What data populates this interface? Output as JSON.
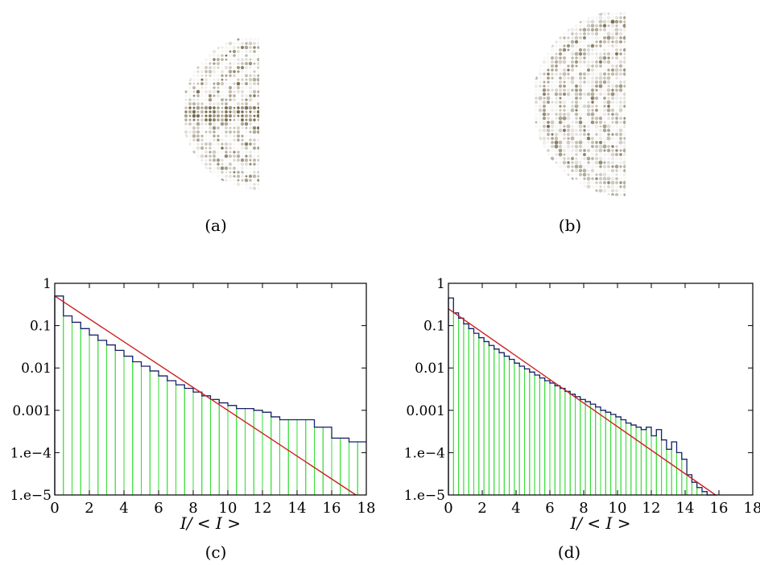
{
  "captions": {
    "a": "(a)",
    "b": "(b)",
    "c": "(c)",
    "d": "(d)"
  },
  "colors": {
    "pattern": "#6b5e3e",
    "bars": "#33dd33",
    "histogram": "#1b1f6b",
    "fit": "#cc2222",
    "axes": "#000000"
  },
  "chart_data": [
    {
      "type": "bar",
      "panel": "c",
      "xlabel": "I/ < I >",
      "ylabel": "",
      "xlim": [
        0,
        18
      ],
      "ylim": [
        1e-05,
        1
      ],
      "yscale": "log",
      "xticks": [
        "0",
        "2",
        "4",
        "6",
        "8",
        "10",
        "12",
        "14",
        "16",
        "18"
      ],
      "yticks": [
        "1",
        "0.1",
        "0.01",
        "0.001",
        "1.e−4",
        "1.e−5"
      ],
      "bar_width": 0.5,
      "bars_x": [
        0,
        0.5,
        1,
        1.5,
        2,
        2.5,
        3,
        3.5,
        4,
        4.5,
        5,
        5.5,
        6,
        6.5,
        7,
        7.5,
        8,
        8.5,
        9,
        9.5,
        10,
        10.5,
        11,
        11.5,
        12,
        12.5,
        13,
        13.5,
        14,
        14.5,
        15,
        15.5,
        16,
        16.5,
        17,
        17.5
      ],
      "histogram_values": [
        0.5,
        0.17,
        0.12,
        0.085,
        0.06,
        0.045,
        0.035,
        0.026,
        0.019,
        0.014,
        0.011,
        0.0085,
        0.0065,
        0.005,
        0.004,
        0.0033,
        0.0027,
        0.0022,
        0.0018,
        0.0015,
        0.0013,
        0.0011,
        0.0011,
        0.001,
        0.0009,
        0.0007,
        0.0006,
        0.0006,
        0.0006,
        0.0006,
        0.0004,
        0.0004,
        0.00022,
        0.00022,
        0.00018,
        0.00018
      ],
      "fit_line": [
        [
          0,
          0.5
        ],
        [
          17.4,
          1e-05
        ]
      ]
    },
    {
      "type": "bar",
      "panel": "d",
      "xlabel": "I/ < I >",
      "ylabel": "",
      "xlim": [
        0,
        18
      ],
      "ylim": [
        1e-05,
        1
      ],
      "yscale": "log",
      "xticks": [
        "0",
        "2",
        "4",
        "6",
        "8",
        "10",
        "12",
        "14",
        "16",
        "18"
      ],
      "yticks": [
        "1",
        "0.1",
        "0.01",
        "0.001",
        "1.e−4",
        "1.e−5"
      ],
      "bar_width": 0.3,
      "bars_x": [
        0,
        0.3,
        0.6,
        0.9,
        1.2,
        1.5,
        1.8,
        2.1,
        2.4,
        2.7,
        3,
        3.3,
        3.6,
        3.9,
        4.2,
        4.5,
        4.8,
        5.1,
        5.4,
        5.7,
        6,
        6.3,
        6.6,
        6.9,
        7.2,
        7.5,
        7.8,
        8.1,
        8.4,
        8.7,
        9,
        9.3,
        9.6,
        9.9,
        10.2,
        10.5,
        10.8,
        11.1,
        11.4,
        11.7,
        12,
        12.3,
        12.6,
        12.9,
        13.2,
        13.5,
        13.8,
        14.1,
        14.4,
        14.7,
        15,
        15.3,
        15.6
      ],
      "histogram_values": [
        0.45,
        0.2,
        0.15,
        0.11,
        0.085,
        0.066,
        0.052,
        0.042,
        0.034,
        0.028,
        0.023,
        0.019,
        0.016,
        0.013,
        0.011,
        0.0095,
        0.008,
        0.0068,
        0.0058,
        0.005,
        0.0044,
        0.0038,
        0.0033,
        0.0028,
        0.0024,
        0.0021,
        0.0018,
        0.0016,
        0.0014,
        0.0012,
        0.001,
        0.0009,
        0.0008,
        0.0007,
        0.0006,
        0.0005,
        0.00045,
        0.0004,
        0.00035,
        0.0004,
        0.00025,
        0.00035,
        0.0002,
        0.00012,
        0.00018,
        0.0001,
        7e-05,
        3e-05,
        2e-05,
        1.5e-05,
        1.2e-05,
        1e-05,
        1e-05
      ],
      "fit_line": [
        [
          0,
          0.25
        ],
        [
          15.8,
          1e-05
        ]
      ]
    }
  ]
}
